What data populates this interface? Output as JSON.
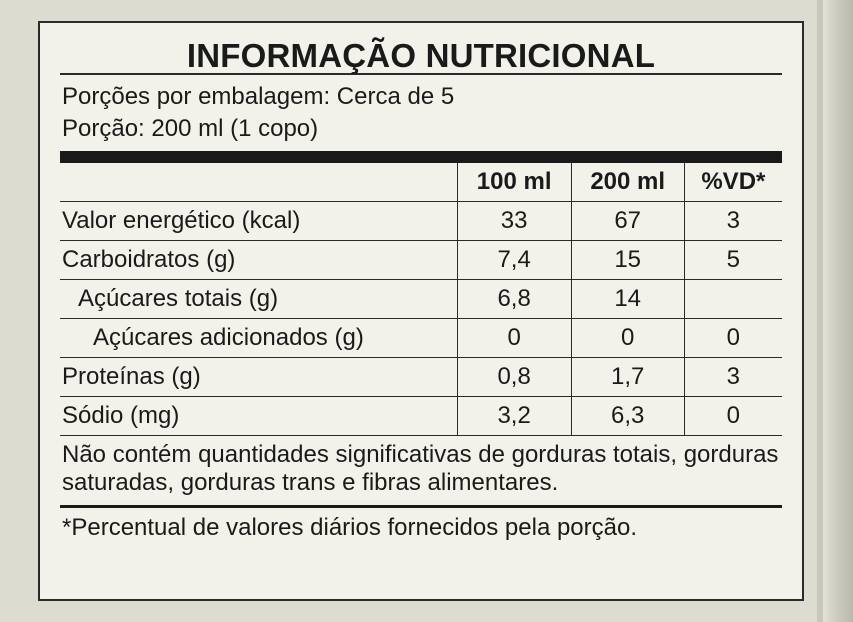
{
  "title": "INFORMAÇÃO NUTRICIONAL",
  "servings_per_package": "Porções por embalagem: Cerca de 5",
  "serving_size": "Porção: 200 ml (1 copo)",
  "columns": [
    "100 ml",
    "200 ml",
    "%VD*"
  ],
  "rows": [
    {
      "name": "Valor energético (kcal)",
      "v100": "33",
      "v200": "67",
      "vd": "3"
    },
    {
      "name": "Carboidratos (g)",
      "v100": "7,4",
      "v200": "15",
      "vd": "5"
    },
    {
      "name": "Açúcares totais (g)",
      "v100": "6,8",
      "v200": "14",
      "vd": ""
    },
    {
      "name": "Açúcares adicionados (g)",
      "v100": "0",
      "v200": "0",
      "vd": "0"
    },
    {
      "name": "Proteínas (g)",
      "v100": "0,8",
      "v200": "1,7",
      "vd": "3"
    },
    {
      "name": "Sódio (mg)",
      "v100": "3,2",
      "v200": "6,3",
      "vd": "0"
    }
  ],
  "note": "Não contém quantidades significativas de gorduras totais, gorduras saturadas, gorduras trans e fibras alimentares.",
  "footnote": "*Percentual de valores diários fornecidos pela porção."
}
